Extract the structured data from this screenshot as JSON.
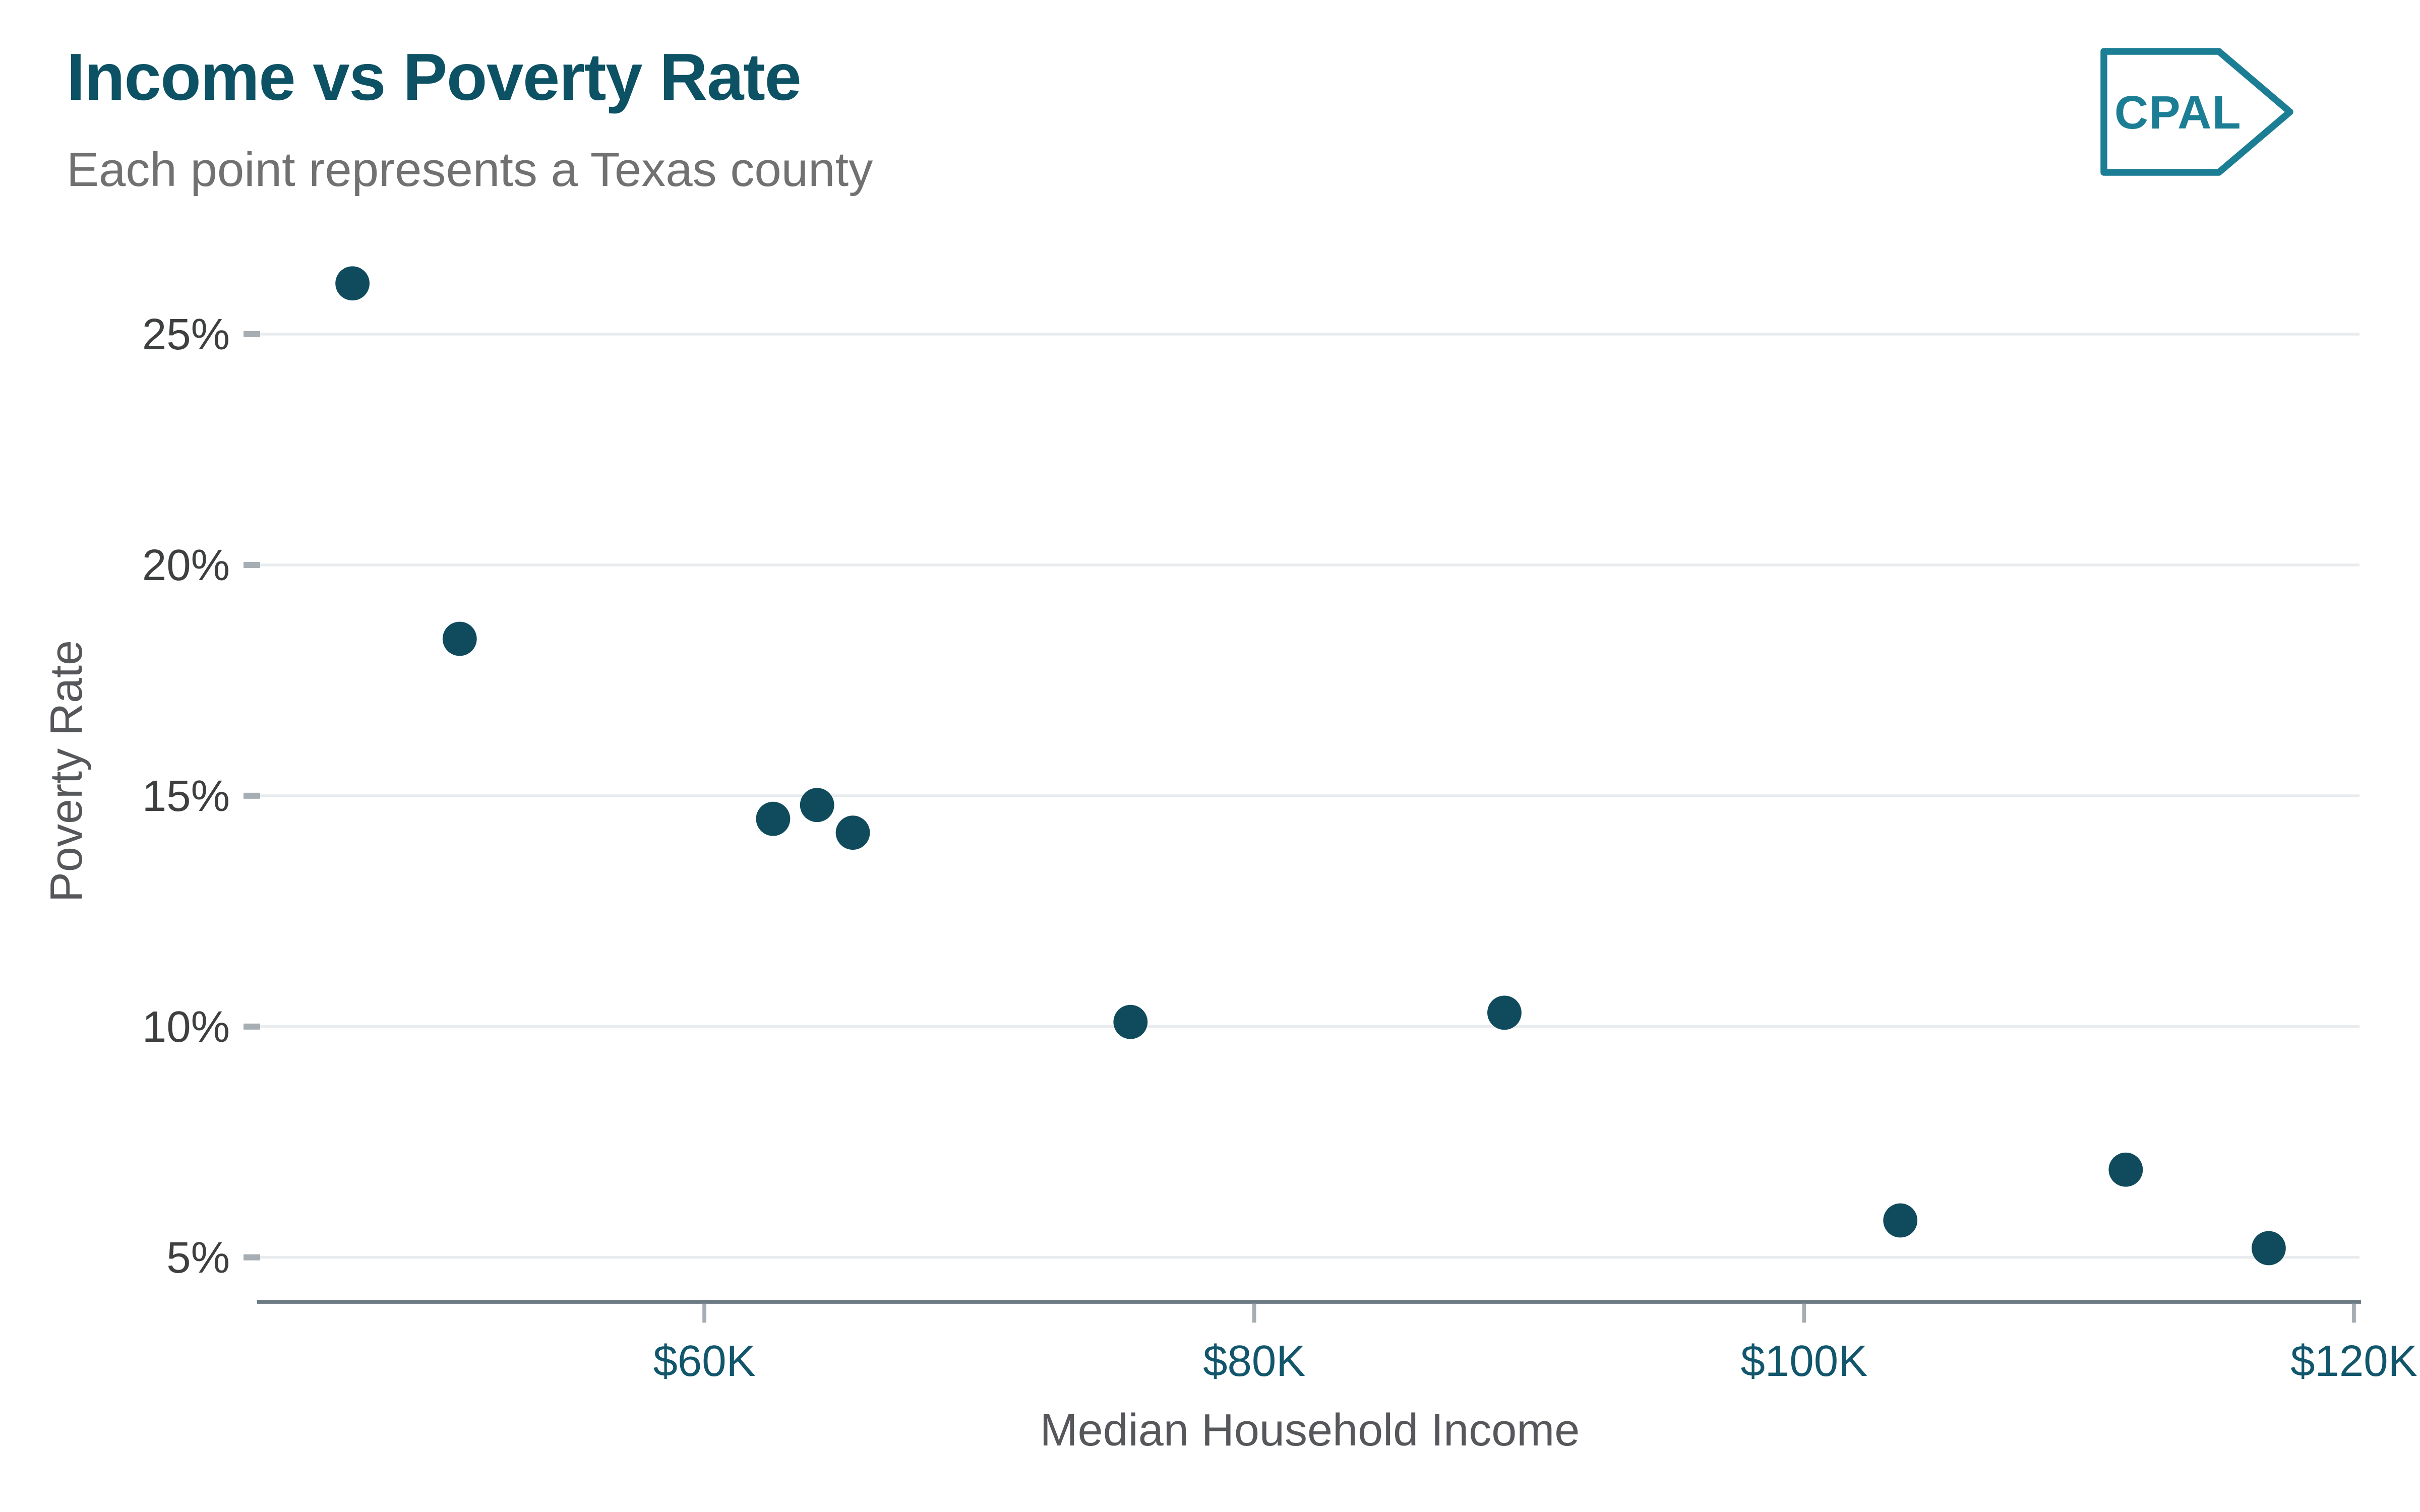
{
  "page": {
    "background": "#FFFFFF"
  },
  "header": {
    "title": "Income vs Poverty Rate",
    "subtitle": "Each point represents a Texas county",
    "title_color": "#0C5164",
    "subtitle_color": "#717171",
    "logo": {
      "text": "CPAL",
      "color": "#1B7E95"
    }
  },
  "chart_data": {
    "type": "scatter",
    "title": "Income vs Poverty Rate",
    "subtitle": "Each point represents a Texas county",
    "xlabel": "Median Household Income",
    "ylabel": "Poverty Rate",
    "x_ticks": [
      {
        "value": 60,
        "label": "$60K"
      },
      {
        "value": 80,
        "label": "$80K"
      },
      {
        "value": 100,
        "label": "$100K"
      },
      {
        "value": 120,
        "label": "$120K"
      }
    ],
    "y_ticks": [
      {
        "value": 25,
        "label": "25%"
      },
      {
        "value": 20,
        "label": "20%"
      },
      {
        "value": 15,
        "label": "15%"
      },
      {
        "value": 10,
        "label": "10%"
      },
      {
        "value": 5,
        "label": "5%"
      }
    ],
    "xlim_k": [
      43.8,
      120.5
    ],
    "ylim_pct": [
      4.0,
      27.5
    ],
    "grid": "horizontal-only",
    "legend": "none",
    "points": [
      {
        "income_k": 47.2,
        "poverty_pct": 26.1
      },
      {
        "income_k": 51.1,
        "poverty_pct": 18.4
      },
      {
        "income_k": 62.5,
        "poverty_pct": 14.5
      },
      {
        "income_k": 64.1,
        "poverty_pct": 14.8
      },
      {
        "income_k": 65.4,
        "poverty_pct": 14.2
      },
      {
        "income_k": 75.5,
        "poverty_pct": 10.1
      },
      {
        "income_k": 89.1,
        "poverty_pct": 10.3
      },
      {
        "income_k": 103.5,
        "poverty_pct": 5.8
      },
      {
        "income_k": 111.7,
        "poverty_pct": 6.9
      },
      {
        "income_k": 116.9,
        "poverty_pct": 5.2
      }
    ],
    "colors": {
      "point": "#0F4B5C",
      "gridline": "#E8EBED",
      "tick_mark": "#A6AEB3",
      "axis_line": "#6C7A83",
      "x_tick_label": "#12566C",
      "y_tick_label": "#3D3F40",
      "axis_title": "#55575A"
    }
  }
}
